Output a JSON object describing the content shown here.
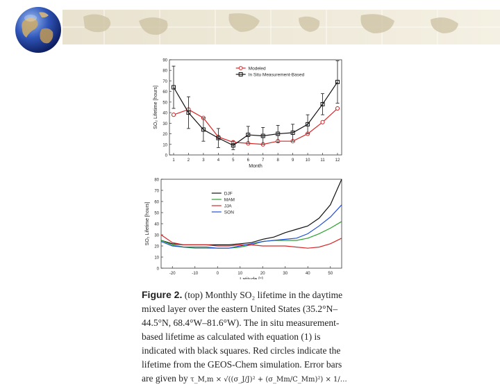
{
  "slide": {
    "caption": {
      "label": "Figure 2.",
      "text": "(top) Monthly SO₂ lifetime in the daytime mixed layer over the eastern United States (35.2°N–44.5°N, 68.4°W–81.6°W). The in situ measurement-based lifetime as calculated with equation (1) is indicated with black squares. Red circles indicate the lifetime from the GEOS-Chem simulation. Error bars are given by",
      "formula": "τ_M,m × √((σ_J/J)² + (σ_Mm/C_Mm)²) × 1/…"
    }
  },
  "chart_data": [
    {
      "type": "line",
      "title": "",
      "xlabel": "Month",
      "ylabel": "SO₂ Lifetime [hours]",
      "xlim": [
        1,
        12
      ],
      "ylim": [
        0,
        90
      ],
      "xticks": [
        1,
        2,
        3,
        4,
        5,
        6,
        7,
        8,
        9,
        10,
        11,
        12
      ],
      "yticks": [
        0,
        10,
        20,
        30,
        40,
        50,
        60,
        70,
        80,
        90
      ],
      "legend_position": "top-right",
      "x": [
        1,
        2,
        3,
        4,
        5,
        6,
        7,
        8,
        9,
        10,
        11,
        12
      ],
      "series": [
        {
          "name": "Modeled",
          "color": "#d62728",
          "marker": "circle",
          "values": [
            38,
            43,
            35,
            17,
            12,
            11,
            10,
            13,
            13,
            20,
            31,
            44
          ]
        },
        {
          "name": "In Situ Measurement-Based",
          "color": "#111111",
          "marker": "square",
          "values": [
            64,
            40,
            24,
            16,
            9,
            19,
            18,
            20,
            21,
            29,
            48,
            69
          ],
          "errors": [
            20,
            15,
            11,
            9,
            4,
            8,
            8,
            8,
            8,
            9,
            10,
            20
          ]
        }
      ]
    },
    {
      "type": "line",
      "title": "",
      "xlabel": "Latitude [°]",
      "ylabel": "SO₂ Lifetime [hours]",
      "xlim": [
        -25,
        55
      ],
      "ylim": [
        0,
        80
      ],
      "xticks": [
        -20,
        -10,
        0,
        10,
        20,
        30,
        40,
        50
      ],
      "yticks": [
        0,
        10,
        20,
        30,
        40,
        50,
        60,
        70,
        80
      ],
      "legend_position": "top-left",
      "x": [
        -25,
        -20,
        -15,
        -10,
        -5,
        0,
        5,
        10,
        15,
        20,
        25,
        30,
        35,
        40,
        45,
        50,
        55
      ],
      "series": [
        {
          "name": "DJF",
          "color": "#111111",
          "values": [
            25,
            22,
            21,
            21,
            21,
            21,
            21,
            22,
            23,
            26,
            28,
            32,
            35,
            38,
            45,
            57,
            80
          ]
        },
        {
          "name": "MAM",
          "color": "#2ca02c",
          "values": [
            25,
            21,
            19,
            18,
            18,
            18,
            18,
            19,
            21,
            24,
            25,
            25,
            25,
            27,
            31,
            36,
            42
          ]
        },
        {
          "name": "JJA",
          "color": "#d62728",
          "values": [
            30,
            23,
            21,
            21,
            21,
            20,
            20,
            21,
            21,
            20,
            20,
            20,
            19,
            18,
            19,
            22,
            27
          ]
        },
        {
          "name": "SON",
          "color": "#1f4fd6",
          "values": [
            24,
            20,
            19,
            19,
            19,
            18,
            18,
            20,
            22,
            24,
            25,
            26,
            27,
            31,
            38,
            46,
            57
          ]
        }
      ]
    }
  ]
}
